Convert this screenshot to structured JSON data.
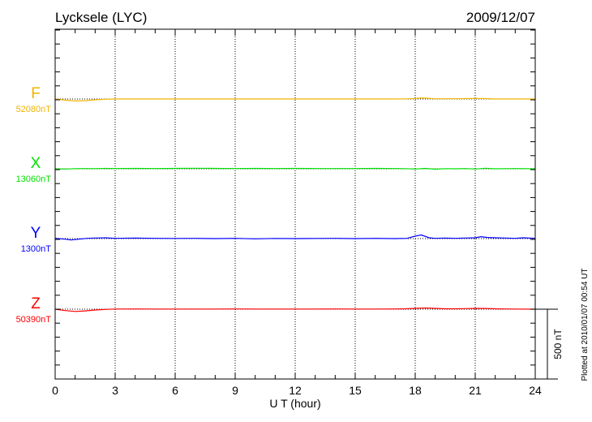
{
  "chart_data": {
    "type": "line",
    "title": "Lycksele (LYC)",
    "date": "2009/12/07",
    "xlabel": "U T (hour)",
    "xlim": [
      0,
      24
    ],
    "xticks": [
      0,
      3,
      6,
      9,
      12,
      15,
      18,
      21,
      24
    ],
    "grid": "vertical dotted every 3 hours",
    "scale_bar_label": "500 nT",
    "plotted_note": "Plotted at 2010/01/07 00:54 UT",
    "units": "nT",
    "series": [
      {
        "name": "F",
        "baseline_label": "52080nT",
        "color": "#f0b400",
        "x": [
          0,
          0.5,
          1,
          1.5,
          2,
          2.5,
          3,
          4,
          5,
          6,
          7,
          8,
          9,
          10,
          11,
          12,
          13,
          14,
          15,
          16,
          17,
          17.5,
          18,
          18.3,
          18.6,
          19,
          19.5,
          20,
          20.5,
          21,
          21.5,
          22,
          22.5,
          23,
          24
        ],
        "y": [
          0,
          -8,
          -14,
          -12,
          -6,
          -2,
          0,
          0,
          0,
          0,
          0,
          0,
          0,
          0,
          0,
          0,
          0,
          0,
          0,
          0,
          0,
          1,
          3,
          8,
          5,
          2,
          2,
          2,
          3,
          4,
          3,
          0,
          0,
          0,
          0
        ]
      },
      {
        "name": "X",
        "baseline_label": "13060nT",
        "color": "#00e000",
        "x": [
          0,
          0.5,
          1,
          1.5,
          2,
          2.5,
          3,
          4,
          5,
          6,
          7,
          8,
          9,
          10,
          11,
          12,
          13,
          14,
          15,
          16,
          17,
          17.5,
          18,
          18.5,
          19,
          19.5,
          20,
          20.5,
          21,
          21.5,
          22,
          22.5,
          23,
          24
        ],
        "y": [
          0,
          -2,
          1,
          2,
          1,
          3,
          2,
          3,
          2,
          3,
          4,
          3,
          2,
          3,
          2,
          3,
          2,
          2,
          2,
          3,
          2,
          1,
          -2,
          3,
          -3,
          1,
          0,
          2,
          -2,
          4,
          0,
          1,
          2,
          0
        ]
      },
      {
        "name": "Y",
        "baseline_label": "1300nT",
        "color": "#0000ff",
        "x": [
          0,
          0.5,
          0.8,
          1.2,
          1.6,
          2,
          2.5,
          3,
          4,
          5,
          6,
          7,
          8,
          9,
          10,
          11,
          12,
          13,
          14,
          15,
          16,
          17,
          17.6,
          18,
          18.3,
          18.7,
          19,
          19.5,
          20,
          20.5,
          21,
          21.3,
          21.6,
          22,
          22.5,
          23,
          23.4,
          24
        ],
        "y": [
          2,
          -4,
          -10,
          -4,
          2,
          4,
          6,
          2,
          4,
          2,
          1,
          2,
          0,
          2,
          -2,
          1,
          0,
          1,
          2,
          0,
          2,
          0,
          2,
          18,
          26,
          6,
          2,
          4,
          2,
          4,
          6,
          14,
          8,
          6,
          4,
          2,
          6,
          2
        ]
      },
      {
        "name": "Z",
        "baseline_label": "50390nT",
        "color": "#ff0000",
        "x": [
          0,
          0.5,
          1,
          1.5,
          2,
          2.5,
          3,
          4,
          5,
          6,
          7,
          8,
          9,
          10,
          11,
          12,
          13,
          14,
          15,
          16,
          17,
          17.5,
          18,
          18.5,
          19,
          19.5,
          20,
          20.5,
          21,
          21.5,
          22,
          22.5,
          23,
          24
        ],
        "y": [
          0,
          -10,
          -16,
          -12,
          -6,
          -2,
          1,
          2,
          1,
          1,
          1,
          1,
          2,
          1,
          1,
          1,
          1,
          2,
          1,
          1,
          2,
          3,
          6,
          9,
          6,
          3,
          3,
          4,
          6,
          5,
          3,
          2,
          1,
          0
        ]
      }
    ]
  }
}
